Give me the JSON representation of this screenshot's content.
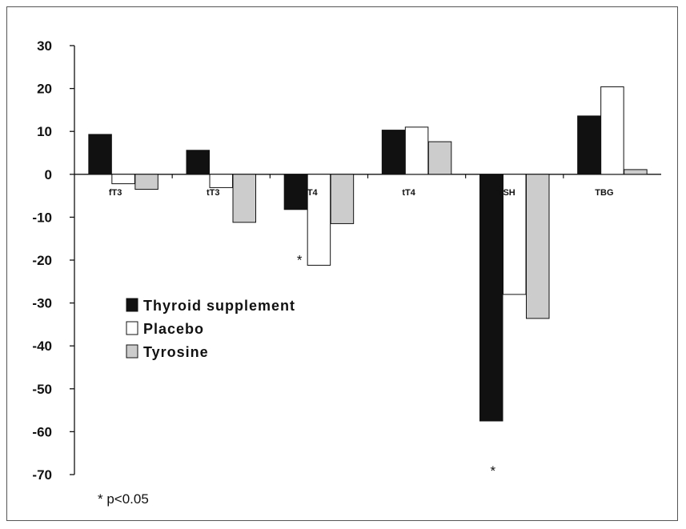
{
  "chart_data": {
    "type": "bar",
    "categories": [
      "fT3",
      "tT3",
      "fT4",
      "tT4",
      "TSH",
      "TBG"
    ],
    "series": [
      {
        "name": "Thyroid supplement",
        "color": "#111111",
        "values": [
          9.3,
          5.6,
          -8.2,
          10.3,
          -57.5,
          13.6
        ]
      },
      {
        "name": "Placebo",
        "color": "#ffffff",
        "values": [
          -2.2,
          -3.1,
          -21.2,
          11.0,
          -28.0,
          20.4
        ]
      },
      {
        "name": "Tyrosine",
        "color": "#cccccc",
        "values": [
          -3.5,
          -11.2,
          -11.5,
          7.6,
          -33.6,
          1.1
        ]
      }
    ],
    "ylim": [
      -70,
      30
    ],
    "yticks": [
      30,
      20,
      10,
      0,
      -10,
      -20,
      -30,
      -40,
      -50,
      -60,
      -70
    ],
    "ytick_labels": [
      "30",
      "20",
      "10",
      "0",
      "-10",
      "-20",
      "-30",
      "-40",
      "-50",
      "-60",
      "-70"
    ],
    "significance_marks": [
      {
        "category": "fT4",
        "series": "Placebo",
        "label": "*"
      },
      {
        "category": "TSH",
        "series": "Thyroid supplement",
        "label": "*"
      }
    ],
    "legend_position": "left-middle",
    "footnote": "* p<0.05"
  }
}
